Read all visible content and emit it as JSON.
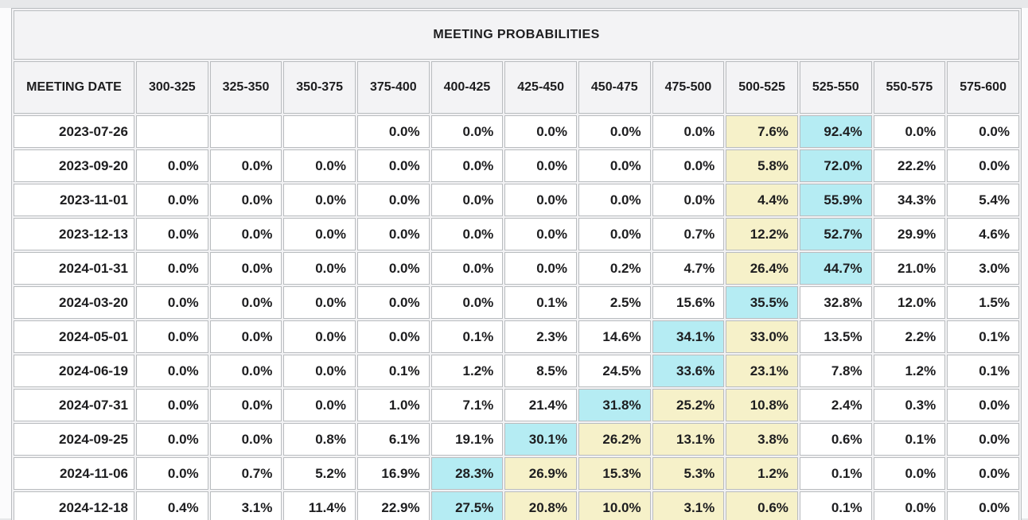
{
  "table": {
    "title": "MEETING PROBABILITIES",
    "date_column_header": "MEETING DATE",
    "rate_columns": [
      "300-325",
      "325-350",
      "350-375",
      "375-400",
      "400-425",
      "425-450",
      "450-475",
      "475-500",
      "500-525",
      "525-550",
      "550-575",
      "575-600"
    ],
    "colors": {
      "header_bg": "#f3f3f5",
      "cell_bg": "#ffffff",
      "current_range_highlight": "#f6f1c9",
      "highest_probability_highlight": "#b5ecf3",
      "border": "#b9bcbf",
      "text": "#1d1d1f"
    },
    "rows": [
      {
        "date": "2023-07-26",
        "values": [
          "",
          "",
          "",
          "0.0%",
          "0.0%",
          "0.0%",
          "0.0%",
          "0.0%",
          "7.6%",
          "92.4%",
          "0.0%",
          "0.0%"
        ],
        "cyan": 9,
        "yellow": [
          8
        ]
      },
      {
        "date": "2023-09-20",
        "values": [
          "0.0%",
          "0.0%",
          "0.0%",
          "0.0%",
          "0.0%",
          "0.0%",
          "0.0%",
          "0.0%",
          "5.8%",
          "72.0%",
          "22.2%",
          "0.0%"
        ],
        "cyan": 9,
        "yellow": [
          8
        ]
      },
      {
        "date": "2023-11-01",
        "values": [
          "0.0%",
          "0.0%",
          "0.0%",
          "0.0%",
          "0.0%",
          "0.0%",
          "0.0%",
          "0.0%",
          "4.4%",
          "55.9%",
          "34.3%",
          "5.4%"
        ],
        "cyan": 9,
        "yellow": [
          8
        ]
      },
      {
        "date": "2023-12-13",
        "values": [
          "0.0%",
          "0.0%",
          "0.0%",
          "0.0%",
          "0.0%",
          "0.0%",
          "0.0%",
          "0.7%",
          "12.2%",
          "52.7%",
          "29.9%",
          "4.6%"
        ],
        "cyan": 9,
        "yellow": [
          8
        ]
      },
      {
        "date": "2024-01-31",
        "values": [
          "0.0%",
          "0.0%",
          "0.0%",
          "0.0%",
          "0.0%",
          "0.0%",
          "0.2%",
          "4.7%",
          "26.4%",
          "44.7%",
          "21.0%",
          "3.0%"
        ],
        "cyan": 9,
        "yellow": [
          8
        ]
      },
      {
        "date": "2024-03-20",
        "values": [
          "0.0%",
          "0.0%",
          "0.0%",
          "0.0%",
          "0.0%",
          "0.1%",
          "2.5%",
          "15.6%",
          "35.5%",
          "32.8%",
          "12.0%",
          "1.5%"
        ],
        "cyan": 8,
        "yellow": []
      },
      {
        "date": "2024-05-01",
        "values": [
          "0.0%",
          "0.0%",
          "0.0%",
          "0.0%",
          "0.1%",
          "2.3%",
          "14.6%",
          "34.1%",
          "33.0%",
          "13.5%",
          "2.2%",
          "0.1%"
        ],
        "cyan": 7,
        "yellow": [
          8
        ]
      },
      {
        "date": "2024-06-19",
        "values": [
          "0.0%",
          "0.0%",
          "0.0%",
          "0.1%",
          "1.2%",
          "8.5%",
          "24.5%",
          "33.6%",
          "23.1%",
          "7.8%",
          "1.2%",
          "0.1%"
        ],
        "cyan": 7,
        "yellow": [
          8
        ]
      },
      {
        "date": "2024-07-31",
        "values": [
          "0.0%",
          "0.0%",
          "0.0%",
          "1.0%",
          "7.1%",
          "21.4%",
          "31.8%",
          "25.2%",
          "10.8%",
          "2.4%",
          "0.3%",
          "0.0%"
        ],
        "cyan": 6,
        "yellow": [
          7,
          8
        ]
      },
      {
        "date": "2024-09-25",
        "values": [
          "0.0%",
          "0.0%",
          "0.8%",
          "6.1%",
          "19.1%",
          "30.1%",
          "26.2%",
          "13.1%",
          "3.8%",
          "0.6%",
          "0.1%",
          "0.0%"
        ],
        "cyan": 5,
        "yellow": [
          6,
          7,
          8
        ]
      },
      {
        "date": "2024-11-06",
        "values": [
          "0.0%",
          "0.7%",
          "5.2%",
          "16.9%",
          "28.3%",
          "26.9%",
          "15.3%",
          "5.3%",
          "1.2%",
          "0.1%",
          "0.0%",
          "0.0%"
        ],
        "cyan": 4,
        "yellow": [
          5,
          6,
          7,
          8
        ]
      },
      {
        "date": "2024-12-18",
        "values": [
          "0.4%",
          "3.1%",
          "11.4%",
          "22.9%",
          "27.5%",
          "20.8%",
          "10.0%",
          "3.1%",
          "0.6%",
          "0.1%",
          "0.0%",
          "0.0%"
        ],
        "cyan": 4,
        "yellow": [
          5,
          6,
          7,
          8
        ]
      }
    ]
  }
}
